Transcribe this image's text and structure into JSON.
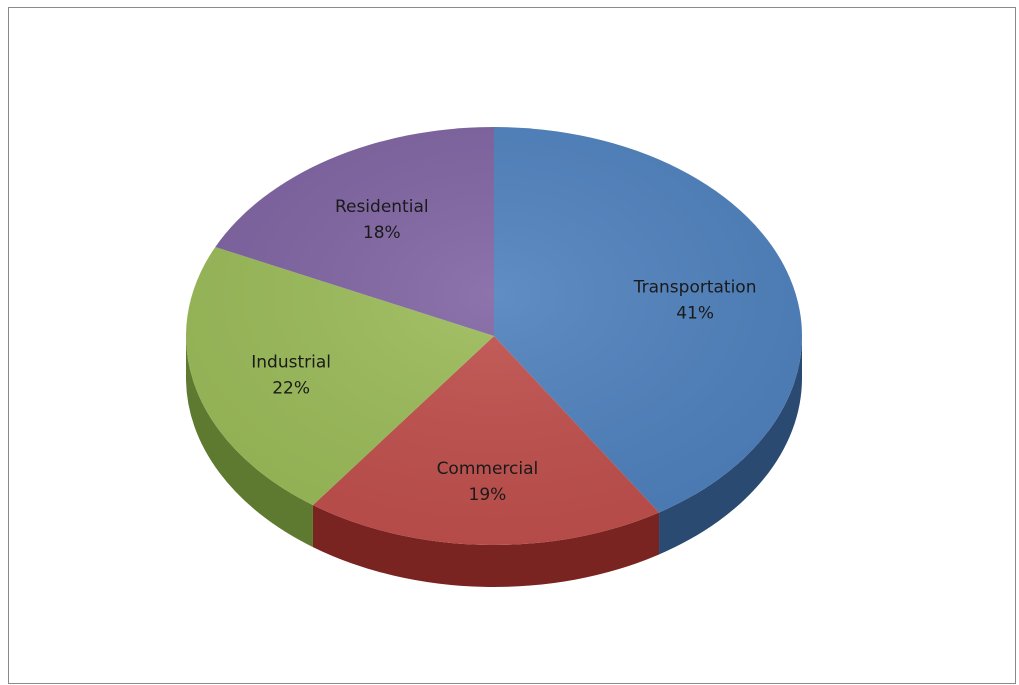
{
  "chart_data": {
    "type": "pie",
    "style": "3d",
    "categories": [
      "Transportation",
      "Commercial",
      "Industrial",
      "Residential"
    ],
    "values": [
      41,
      19,
      22,
      18
    ],
    "value_labels": [
      "41%",
      "19%",
      "22%",
      "18%"
    ],
    "colors": [
      "#4f81bd",
      "#c0504d",
      "#9bbb59",
      "#8064a2"
    ],
    "side_colors": [
      "#2a4a72",
      "#7a2422",
      "#5e7a30",
      "#4e3a6a"
    ],
    "title": "",
    "legend": "none",
    "start_angle_deg": -90,
    "direction": "clockwise"
  }
}
